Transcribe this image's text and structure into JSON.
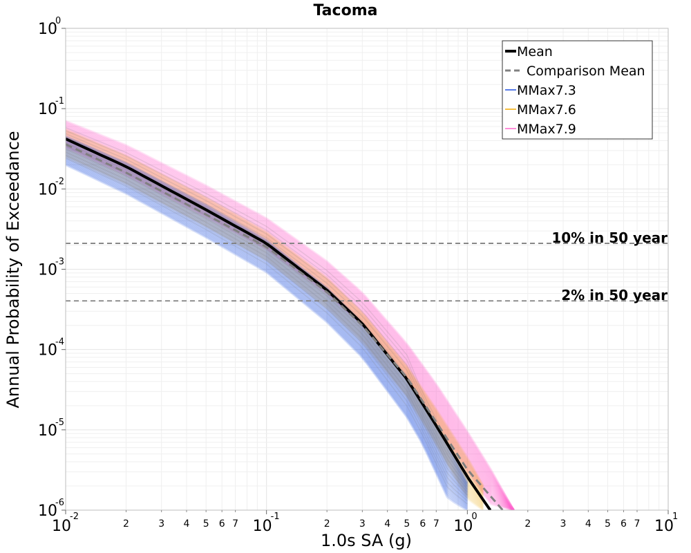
{
  "chart_data": {
    "type": "line",
    "title": "Tacoma",
    "xlabel": "1.0s SA (g)",
    "ylabel": "Annual Probability of Exceedance",
    "xscale": "log",
    "yscale": "log",
    "xlim": [
      0.01,
      10
    ],
    "ylim": [
      1e-06,
      1
    ],
    "grid": true,
    "legend_position": "top-right",
    "x_major_ticks": [
      {
        "base": "10",
        "exp": "-2"
      },
      {
        "base": "10",
        "exp": "-1"
      },
      {
        "base": "10",
        "exp": "0"
      },
      {
        "base": "10",
        "exp": "1"
      }
    ],
    "x_minor_tick_labels": [
      "2",
      "3",
      "4",
      "5",
      "6",
      "7"
    ],
    "y_major_ticks": [
      {
        "base": "10",
        "exp": "0"
      },
      {
        "base": "10",
        "exp": "-1"
      },
      {
        "base": "10",
        "exp": "-2"
      },
      {
        "base": "10",
        "exp": "-3"
      },
      {
        "base": "10",
        "exp": "-4"
      },
      {
        "base": "10",
        "exp": "-5"
      },
      {
        "base": "10",
        "exp": "-6"
      }
    ],
    "legend": [
      {
        "label": "Mean",
        "color": "#000000",
        "style": "solid-thick"
      },
      {
        "label": "Comparison Mean",
        "color": "#808080",
        "style": "dashed"
      },
      {
        "label": "MMax7.3",
        "color": "#1f4fe0",
        "style": "solid"
      },
      {
        "label": "MMax7.6",
        "color": "#f0a800",
        "style": "solid"
      },
      {
        "label": "MMax7.9",
        "color": "#ff66cc",
        "style": "solid"
      }
    ],
    "reference_lines": [
      {
        "label": "10% in 50 year",
        "y": 0.0021
      },
      {
        "label": "2% in 50 year",
        "y": 0.000404
      }
    ],
    "series": [
      {
        "name": "Mean",
        "color": "#000000",
        "x": [
          0.01,
          0.02,
          0.05,
          0.1,
          0.2,
          0.3,
          0.5,
          0.7,
          1.0,
          1.3
        ],
        "y": [
          0.042,
          0.019,
          0.0055,
          0.0021,
          0.00055,
          0.00021,
          4.3e-05,
          1.13e-05,
          2.6e-06,
          1e-06
        ]
      },
      {
        "name": "Comparison Mean",
        "color": "#808080",
        "x": [
          0.01,
          0.02,
          0.05,
          0.1,
          0.2,
          0.3,
          0.5,
          0.7,
          1.0,
          1.5
        ],
        "y": [
          0.036,
          0.016,
          0.0048,
          0.0019,
          0.00052,
          0.0002,
          4.5e-05,
          1.25e-05,
          3.2e-06,
          1e-06
        ]
      }
    ],
    "bands": [
      {
        "name": "MMax7.9",
        "color": "#ff66cc",
        "x": [
          0.01,
          0.02,
          0.05,
          0.1,
          0.2,
          0.3,
          0.5,
          0.7,
          1.0,
          1.3,
          1.7
        ],
        "upper": [
          0.07,
          0.035,
          0.011,
          0.0043,
          0.00125,
          0.00051,
          0.000118,
          3.7e-05,
          9.5e-06,
          3.3e-06,
          1e-06
        ],
        "lower": [
          0.033,
          0.015,
          0.0045,
          0.0018,
          0.0005,
          0.0002,
          4.5e-05,
          1.25e-05,
          3e-06,
          1.2e-06,
          1e-06
        ]
      },
      {
        "name": "MMax7.6",
        "color": "#f0a800",
        "x": [
          0.01,
          0.02,
          0.05,
          0.1,
          0.2,
          0.3,
          0.5,
          0.7,
          1.0,
          1.2
        ],
        "upper": [
          0.055,
          0.026,
          0.0078,
          0.0029,
          0.00078,
          0.00029,
          6.2e-05,
          1.8e-05,
          4.5e-06,
          2e-06
        ],
        "lower": [
          0.025,
          0.0115,
          0.0034,
          0.0013,
          0.00033,
          0.000125,
          2.6e-05,
          6.6e-06,
          1.4e-06,
          1e-06
        ]
      },
      {
        "name": "MMax7.3",
        "color": "#1f4fe0",
        "x": [
          0.01,
          0.02,
          0.05,
          0.1,
          0.2,
          0.3,
          0.5,
          0.6,
          0.8,
          1.0
        ],
        "upper": [
          0.045,
          0.021,
          0.0063,
          0.0023,
          0.00058,
          0.00021,
          4.2e-05,
          2.2e-05,
          6.5e-06,
          2.2e-06
        ],
        "lower": [
          0.02,
          0.0088,
          0.0025,
          0.00092,
          0.00022,
          8e-05,
          1.45e-05,
          6.6e-06,
          1.4e-06,
          1e-06
        ]
      }
    ]
  }
}
